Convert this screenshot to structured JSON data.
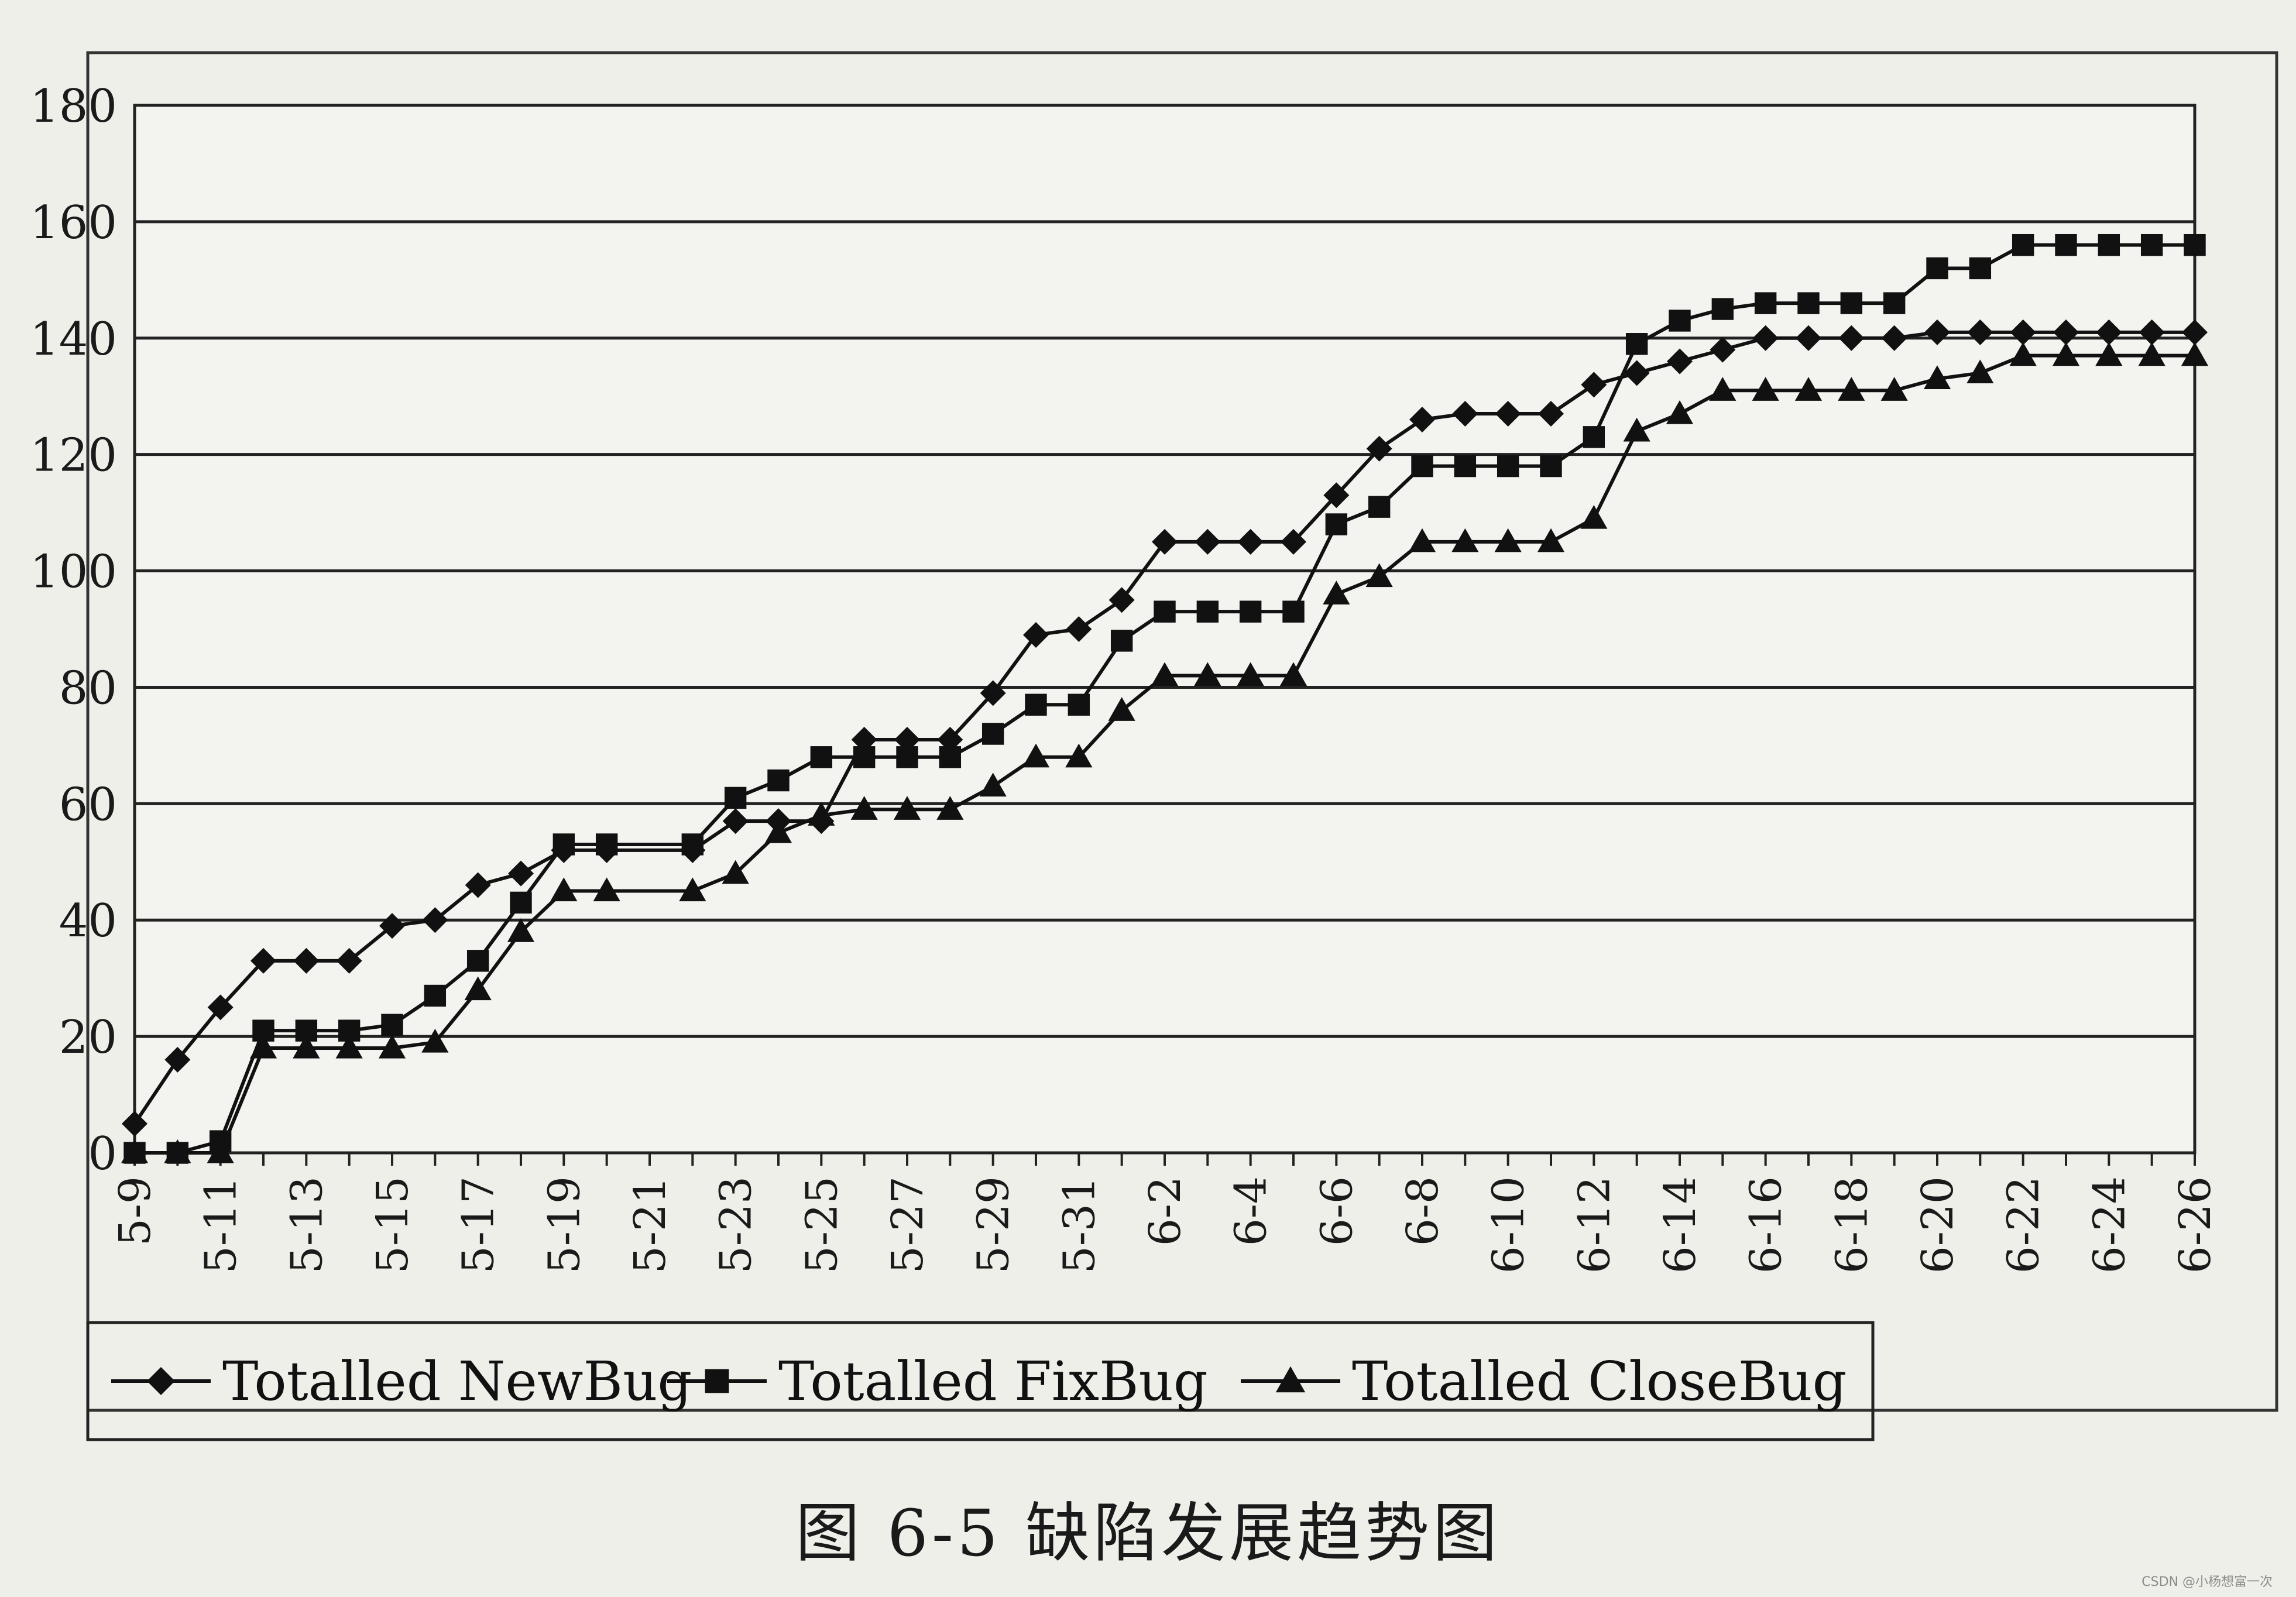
{
  "caption": "图 6-5    缺陷发展趋势图",
  "watermark": "CSDN @小杨想富一次",
  "colors": {
    "line": "#111111",
    "grid": "#222222",
    "background": "#efefea"
  },
  "chart_data": {
    "type": "line",
    "title": "",
    "xlabel": "",
    "ylabel": "",
    "ylim": [
      0,
      180
    ],
    "yticks": [
      0,
      20,
      40,
      60,
      80,
      100,
      120,
      140,
      160,
      180
    ],
    "grid": true,
    "legend_position": "bottom",
    "x": [
      "5-9",
      "5-10",
      "5-11",
      "5-12",
      "5-13",
      "5-14",
      "5-15",
      "5-16",
      "5-17",
      "5-18",
      "5-19",
      "5-20",
      "5-21",
      "5-22",
      "5-23",
      "5-24",
      "5-25",
      "5-26",
      "5-27",
      "5-28",
      "5-29",
      "5-30",
      "5-31",
      "6-1",
      "6-2",
      "6-3",
      "6-4",
      "6-5",
      "6-6",
      "6-7",
      "6-8",
      "6-9",
      "6-10",
      "6-11",
      "6-12",
      "6-13",
      "6-14",
      "6-15",
      "6-16",
      "6-17",
      "6-18",
      "6-19",
      "6-20",
      "6-21",
      "6-22",
      "6-23",
      "6-24",
      "6-25",
      "6-26"
    ],
    "xtick_labels": [
      "5-9",
      "5-11",
      "5-13",
      "5-15",
      "5-17",
      "5-19",
      "5-21",
      "5-23",
      "5-25",
      "5-27",
      "5-29",
      "5-31",
      "6-2",
      "6-4",
      "6-6",
      "6-8",
      "6-10",
      "6-12",
      "6-14",
      "6-16",
      "6-18",
      "6-20",
      "6-22",
      "6-24",
      "6-26"
    ],
    "series": [
      {
        "name": "Totalled NewBug",
        "marker": "diamond",
        "x": [
          "5-9",
          "5-10",
          "5-11",
          "5-12",
          "5-13",
          "5-14",
          "5-15",
          "5-16",
          "5-17",
          "5-18",
          "5-19",
          "5-20",
          "5-22",
          "5-23",
          "5-24",
          "5-25",
          "5-26",
          "5-27",
          "5-28",
          "5-29",
          "5-30",
          "5-31",
          "6-1",
          "6-2",
          "6-3",
          "6-4",
          "6-5",
          "6-6",
          "6-7",
          "6-8",
          "6-9",
          "6-10",
          "6-11",
          "6-12",
          "6-13",
          "6-14",
          "6-15",
          "6-16",
          "6-17",
          "6-18",
          "6-19",
          "6-20",
          "6-21",
          "6-22",
          "6-23",
          "6-24",
          "6-25",
          "6-26"
        ],
        "values": [
          5,
          16,
          25,
          33,
          33,
          33,
          39,
          40,
          46,
          48,
          52,
          52,
          52,
          57,
          57,
          57,
          71,
          71,
          71,
          79,
          89,
          90,
          95,
          105,
          105,
          105,
          105,
          113,
          121,
          126,
          127,
          127,
          127,
          132,
          134,
          136,
          138,
          140,
          140,
          140,
          140,
          141,
          141,
          141,
          141,
          141,
          141,
          141
        ]
      },
      {
        "name": "Totalled FixBug",
        "marker": "square",
        "x": [
          "5-9",
          "5-10",
          "5-11",
          "5-12",
          "5-13",
          "5-14",
          "5-15",
          "5-16",
          "5-17",
          "5-18",
          "5-19",
          "5-20",
          "5-22",
          "5-23",
          "5-24",
          "5-25",
          "5-26",
          "5-27",
          "5-28",
          "5-29",
          "5-30",
          "5-31",
          "6-1",
          "6-2",
          "6-3",
          "6-4",
          "6-5",
          "6-6",
          "6-7",
          "6-8",
          "6-9",
          "6-10",
          "6-11",
          "6-12",
          "6-13",
          "6-14",
          "6-15",
          "6-16",
          "6-17",
          "6-18",
          "6-19",
          "6-20",
          "6-21",
          "6-22",
          "6-23",
          "6-24",
          "6-25",
          "6-26"
        ],
        "values": [
          0,
          0,
          2,
          21,
          21,
          21,
          22,
          27,
          33,
          43,
          53,
          53,
          53,
          61,
          64,
          68,
          68,
          68,
          68,
          72,
          77,
          77,
          88,
          93,
          93,
          93,
          93,
          108,
          111,
          118,
          118,
          118,
          118,
          123,
          139,
          143,
          145,
          146,
          146,
          146,
          146,
          152,
          152,
          156,
          156,
          156,
          156,
          156
        ]
      },
      {
        "name": "Totalled CloseBug",
        "marker": "triangle",
        "x": [
          "5-9",
          "5-10",
          "5-11",
          "5-12",
          "5-13",
          "5-14",
          "5-15",
          "5-16",
          "5-17",
          "5-18",
          "5-19",
          "5-20",
          "5-22",
          "5-23",
          "5-24",
          "5-25",
          "5-26",
          "5-27",
          "5-28",
          "5-29",
          "5-30",
          "5-31",
          "6-1",
          "6-2",
          "6-3",
          "6-4",
          "6-5",
          "6-6",
          "6-7",
          "6-8",
          "6-9",
          "6-10",
          "6-11",
          "6-12",
          "6-13",
          "6-14",
          "6-15",
          "6-16",
          "6-17",
          "6-18",
          "6-19",
          "6-20",
          "6-21",
          "6-22",
          "6-23",
          "6-24",
          "6-25",
          "6-26"
        ],
        "values": [
          0,
          0,
          0,
          18,
          18,
          18,
          18,
          19,
          28,
          38,
          45,
          45,
          45,
          48,
          55,
          58,
          59,
          59,
          59,
          63,
          68,
          68,
          76,
          82,
          82,
          82,
          82,
          96,
          99,
          105,
          105,
          105,
          105,
          109,
          124,
          127,
          131,
          131,
          131,
          131,
          131,
          133,
          134,
          137,
          137,
          137,
          137,
          137
        ]
      }
    ]
  }
}
